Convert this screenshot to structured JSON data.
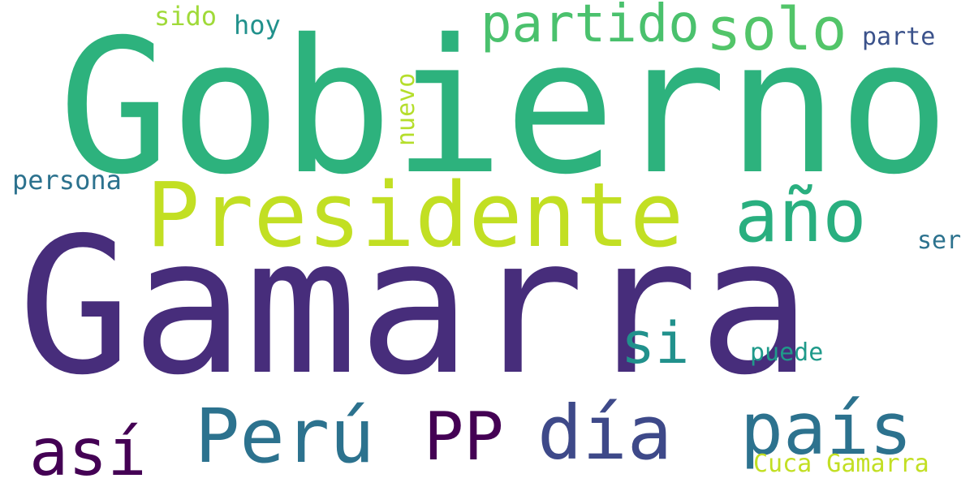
{
  "words": {
    "gamarra": {
      "text": "Gamarra",
      "color": "#472d7b"
    },
    "gobierno": {
      "text": "Gobierno",
      "color": "#2db27d"
    },
    "presidente": {
      "text": "Presidente",
      "color": "#c2df23"
    },
    "ano": {
      "text": "año",
      "color": "#29af7f"
    },
    "peru": {
      "text": "Perú",
      "color": "#2c728e"
    },
    "pais": {
      "text": "país",
      "color": "#2c728e"
    },
    "dia": {
      "text": "día",
      "color": "#3e4989"
    },
    "pp": {
      "text": "PP",
      "color": "#440154"
    },
    "asi": {
      "text": "así",
      "color": "#440154"
    },
    "solo": {
      "text": "solo",
      "color": "#52c569"
    },
    "partido": {
      "text": "partido",
      "color": "#4ac16d"
    },
    "si": {
      "text": "si",
      "color": "#21918c"
    },
    "persona": {
      "text": "persona",
      "color": "#2c728e"
    },
    "hoy": {
      "text": "hoy",
      "color": "#21918c"
    },
    "sido": {
      "text": "sido",
      "color": "#a0da39"
    },
    "parte": {
      "text": "parte",
      "color": "#3b528b"
    },
    "ser": {
      "text": "ser",
      "color": "#2c728e"
    },
    "puede": {
      "text": "puede",
      "color": "#1f9a8a"
    },
    "cuca": {
      "text": "Cuca Gamarra",
      "color": "#c2df23"
    },
    "nuevo": {
      "text": "nuevo",
      "color": "#b5de2b"
    }
  }
}
